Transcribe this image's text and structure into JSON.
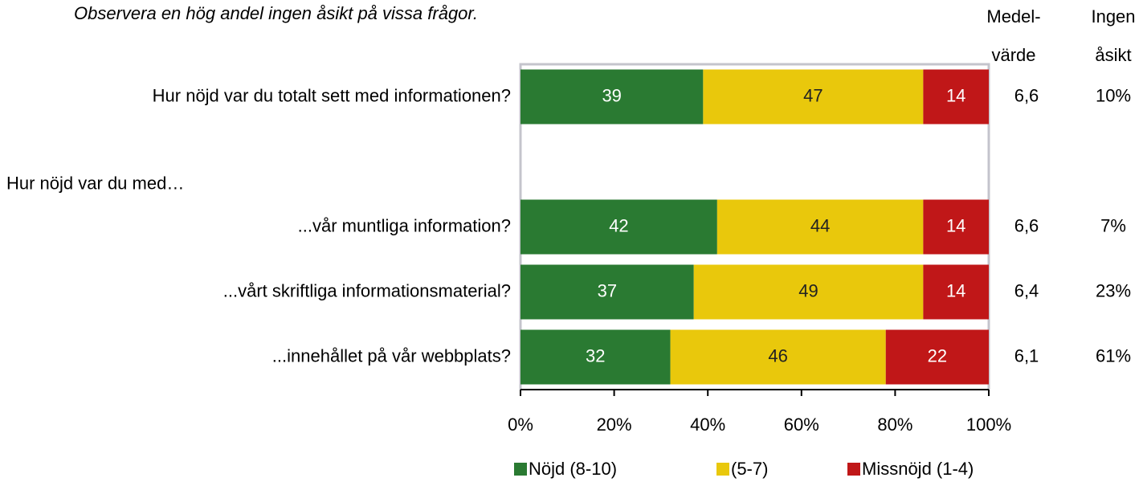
{
  "chart_data": {
    "type": "stacked-bar-horizontal",
    "annotation": "Observera en hög andel ingen åsikt på vissa frågor.",
    "categories": [
      "Hur nöjd var du totalt sett med informationen?",
      "Hur nöjd var du med…",
      "...vår muntliga information?",
      "...vårt skriftliga informationsmaterial?",
      "...innehållet på vår webbplats?"
    ],
    "series": [
      {
        "name": "Nöjd (8-10)",
        "color": "#2a7a32",
        "values": [
          39,
          null,
          42,
          37,
          32
        ]
      },
      {
        "name": "(5-7)",
        "color": "#e9c80c",
        "values": [
          47,
          null,
          44,
          49,
          46
        ]
      },
      {
        "name": "Missnöjd (1-4)",
        "color": "#c01718",
        "values": [
          14,
          null,
          14,
          14,
          22
        ]
      }
    ],
    "xlim": [
      0,
      100
    ],
    "xticks": [
      {
        "value": 0,
        "label": "0%"
      },
      {
        "value": 20,
        "label": "20%"
      },
      {
        "value": 40,
        "label": "40%"
      },
      {
        "value": 60,
        "label": "60%"
      },
      {
        "value": 80,
        "label": "80%"
      },
      {
        "value": 100,
        "label": "100%"
      }
    ],
    "mean_header": [
      "Medel-",
      "värde"
    ],
    "mean_values": [
      6.6,
      null,
      6.6,
      6.4,
      6.1
    ],
    "mean_labels": [
      "6,6",
      null,
      "6,6",
      "6,4",
      "6,1"
    ],
    "no_opinion_header": [
      "Ingen",
      "åsikt"
    ],
    "no_opinion_values": [
      10,
      null,
      7,
      23,
      61
    ],
    "no_opinion_labels": [
      "10%",
      null,
      "7%",
      "23%",
      "61%"
    ],
    "legend": "bottom"
  }
}
